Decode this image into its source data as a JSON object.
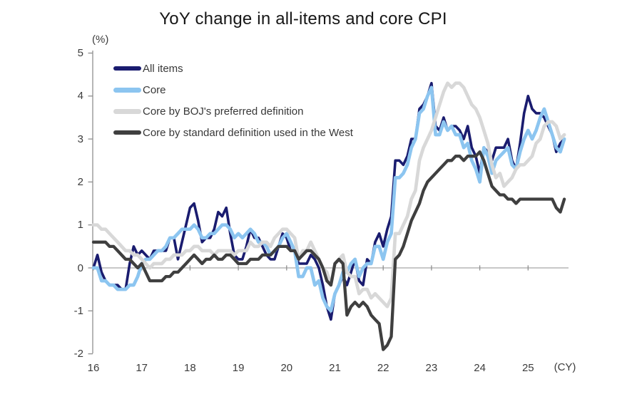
{
  "title": "YoY change in all-items and core CPI",
  "y_axis": {
    "unit_label": "(%)",
    "tick_labels": [
      "5",
      "4",
      "3",
      "2",
      "1",
      "0",
      "-1",
      "-2"
    ],
    "max": 5,
    "min": -2
  },
  "x_axis": {
    "tick_labels": [
      "16",
      "17",
      "18",
      "19",
      "20",
      "21",
      "22",
      "23",
      "24",
      "25"
    ],
    "unit_label": "(CY)"
  },
  "colors": {
    "zero_line": "#a6a6a6",
    "axis": "#8f8f8f",
    "tick": "#8f8f8f",
    "text": "#3c3c3c",
    "title_text": "#171717"
  },
  "chart_data": {
    "type": "line",
    "title": "YoY change in all-items and core CPI",
    "ylabel": "(%)",
    "xlabel": "(CY)",
    "ylim": [
      -2,
      5
    ],
    "y_ticks": [
      5,
      4,
      3,
      2,
      1,
      0,
      -1,
      -2
    ],
    "x_tick_years": [
      "16",
      "17",
      "18",
      "19",
      "20",
      "21",
      "22",
      "23",
      "24",
      "25"
    ],
    "x_start": "2016-01",
    "x_end": "2025-10",
    "frequency": "monthly",
    "grid": "zero-line-only",
    "legend_position": "top-left",
    "series": [
      {
        "name": "All items",
        "color": "#1a1c6f",
        "values": [
          0.0,
          0.3,
          -0.1,
          -0.3,
          -0.4,
          -0.4,
          -0.4,
          -0.5,
          -0.5,
          0.1,
          0.5,
          0.3,
          0.4,
          0.3,
          0.2,
          0.4,
          0.4,
          0.4,
          0.4,
          0.7,
          0.7,
          0.2,
          0.6,
          1.0,
          1.4,
          1.5,
          1.1,
          0.6,
          0.7,
          0.7,
          0.9,
          1.3,
          1.2,
          1.4,
          0.8,
          0.3,
          0.2,
          0.2,
          0.5,
          0.9,
          0.7,
          0.7,
          0.5,
          0.3,
          0.2,
          0.2,
          0.5,
          0.8,
          0.7,
          0.4,
          0.4,
          0.1,
          0.1,
          0.1,
          0.3,
          0.2,
          0.0,
          -0.4,
          -0.9,
          -1.2,
          -0.6,
          -0.4,
          -0.2,
          -0.4,
          -0.1,
          0.2,
          -0.3,
          -0.4,
          0.2,
          0.1,
          0.6,
          0.8,
          0.5,
          0.9,
          1.2,
          2.5,
          2.5,
          2.4,
          2.6,
          3.0,
          3.0,
          3.7,
          3.8,
          4.0,
          4.3,
          3.3,
          3.2,
          3.5,
          3.2,
          3.3,
          3.3,
          3.2,
          3.0,
          3.3,
          2.8,
          2.6,
          2.2,
          2.8,
          2.7,
          2.5,
          2.8,
          2.8,
          2.8,
          3.0,
          2.5,
          2.3,
          2.9,
          3.6,
          4.0,
          3.7,
          3.6,
          3.6,
          3.5,
          3.3,
          3.1,
          2.7,
          2.9,
          3.0
        ]
      },
      {
        "name": "Core",
        "color": "#8cc5f0",
        "values": [
          0.0,
          0.0,
          -0.3,
          -0.3,
          -0.4,
          -0.4,
          -0.5,
          -0.5,
          -0.5,
          -0.4,
          -0.4,
          -0.2,
          0.1,
          0.2,
          0.2,
          0.3,
          0.4,
          0.4,
          0.5,
          0.7,
          0.7,
          0.8,
          0.9,
          0.9,
          0.9,
          1.0,
          0.9,
          0.7,
          0.7,
          0.8,
          0.8,
          0.9,
          1.0,
          1.0,
          0.9,
          0.7,
          0.8,
          0.7,
          0.8,
          0.9,
          0.8,
          0.6,
          0.6,
          0.5,
          0.3,
          0.4,
          0.5,
          0.7,
          0.8,
          0.6,
          0.4,
          -0.2,
          -0.2,
          0.0,
          0.0,
          -0.4,
          -0.3,
          -0.7,
          -0.9,
          -1.0,
          -0.6,
          -0.4,
          -0.1,
          -0.1,
          0.1,
          0.2,
          -0.2,
          0.0,
          0.1,
          0.1,
          0.5,
          0.5,
          0.2,
          0.6,
          0.8,
          2.1,
          2.1,
          2.2,
          2.4,
          2.8,
          3.0,
          3.6,
          3.7,
          4.0,
          4.2,
          3.1,
          3.1,
          3.4,
          3.2,
          3.3,
          3.1,
          3.1,
          2.8,
          2.9,
          2.5,
          2.3,
          2.0,
          2.8,
          2.6,
          2.2,
          2.5,
          2.6,
          2.7,
          2.8,
          2.4,
          2.3,
          2.7,
          3.0,
          3.2,
          3.0,
          3.2,
          3.5,
          3.7,
          3.4,
          3.1,
          2.8,
          2.7,
          3.0
        ]
      },
      {
        "name": "Core by BOJ's preferred definition",
        "color": "#d8d8d8",
        "values": [
          1.0,
          1.0,
          0.9,
          0.9,
          0.8,
          0.7,
          0.6,
          0.5,
          0.4,
          0.4,
          0.3,
          0.3,
          0.2,
          0.1,
          0.0,
          0.1,
          0.1,
          0.1,
          0.2,
          0.2,
          0.3,
          0.3,
          0.3,
          0.4,
          0.4,
          0.5,
          0.5,
          0.4,
          0.4,
          0.4,
          0.3,
          0.4,
          0.4,
          0.4,
          0.4,
          0.3,
          0.4,
          0.4,
          0.4,
          0.6,
          0.5,
          0.5,
          0.6,
          0.6,
          0.5,
          0.7,
          0.8,
          0.9,
          0.9,
          0.8,
          0.7,
          0.2,
          0.4,
          0.4,
          0.6,
          0.4,
          0.2,
          0.0,
          -0.1,
          -0.4,
          0.1,
          0.2,
          0.3,
          -0.1,
          -0.2,
          -0.2,
          -0.6,
          -0.5,
          -0.5,
          -0.7,
          -0.6,
          -0.7,
          -0.8,
          -0.9,
          -0.7,
          0.8,
          0.8,
          1.0,
          1.2,
          1.6,
          1.8,
          2.5,
          2.8,
          3.0,
          3.2,
          3.5,
          3.8,
          4.1,
          4.3,
          4.2,
          4.3,
          4.3,
          4.2,
          4.0,
          3.8,
          3.7,
          3.5,
          3.2,
          2.9,
          2.4,
          2.1,
          2.2,
          1.9,
          2.0,
          2.1,
          2.3,
          2.4,
          2.4,
          2.5,
          2.6,
          2.9,
          3.0,
          3.3,
          3.4,
          3.4,
          3.3,
          3.0,
          3.1
        ]
      },
      {
        "name": "Core by standard definition used in the West",
        "color": "#3f3f3f",
        "values": [
          0.6,
          0.6,
          0.6,
          0.6,
          0.5,
          0.5,
          0.4,
          0.3,
          0.2,
          0.2,
          0.1,
          0.0,
          0.1,
          -0.1,
          -0.3,
          -0.3,
          -0.3,
          -0.3,
          -0.2,
          -0.2,
          -0.1,
          -0.1,
          0.0,
          0.1,
          0.2,
          0.3,
          0.2,
          0.1,
          0.2,
          0.2,
          0.3,
          0.2,
          0.2,
          0.3,
          0.3,
          0.2,
          0.1,
          0.1,
          0.1,
          0.2,
          0.2,
          0.2,
          0.3,
          0.3,
          0.3,
          0.4,
          0.5,
          0.5,
          0.5,
          0.4,
          0.4,
          0.2,
          0.3,
          0.4,
          0.4,
          0.3,
          0.2,
          0.0,
          -0.3,
          -0.4,
          0.1,
          0.2,
          0.1,
          -1.1,
          -0.9,
          -0.8,
          -0.9,
          -0.8,
          -0.9,
          -1.1,
          -1.2,
          -1.3,
          -1.9,
          -1.8,
          -1.6,
          0.2,
          0.3,
          0.5,
          0.8,
          1.1,
          1.3,
          1.5,
          1.8,
          2.0,
          2.1,
          2.2,
          2.3,
          2.4,
          2.5,
          2.5,
          2.6,
          2.6,
          2.5,
          2.6,
          2.6,
          2.6,
          2.7,
          2.5,
          2.2,
          1.9,
          1.8,
          1.7,
          1.7,
          1.6,
          1.6,
          1.5,
          1.6,
          1.6,
          1.6,
          1.6,
          1.6,
          1.6,
          1.6,
          1.6,
          1.6,
          1.4,
          1.3,
          1.6
        ]
      }
    ]
  }
}
